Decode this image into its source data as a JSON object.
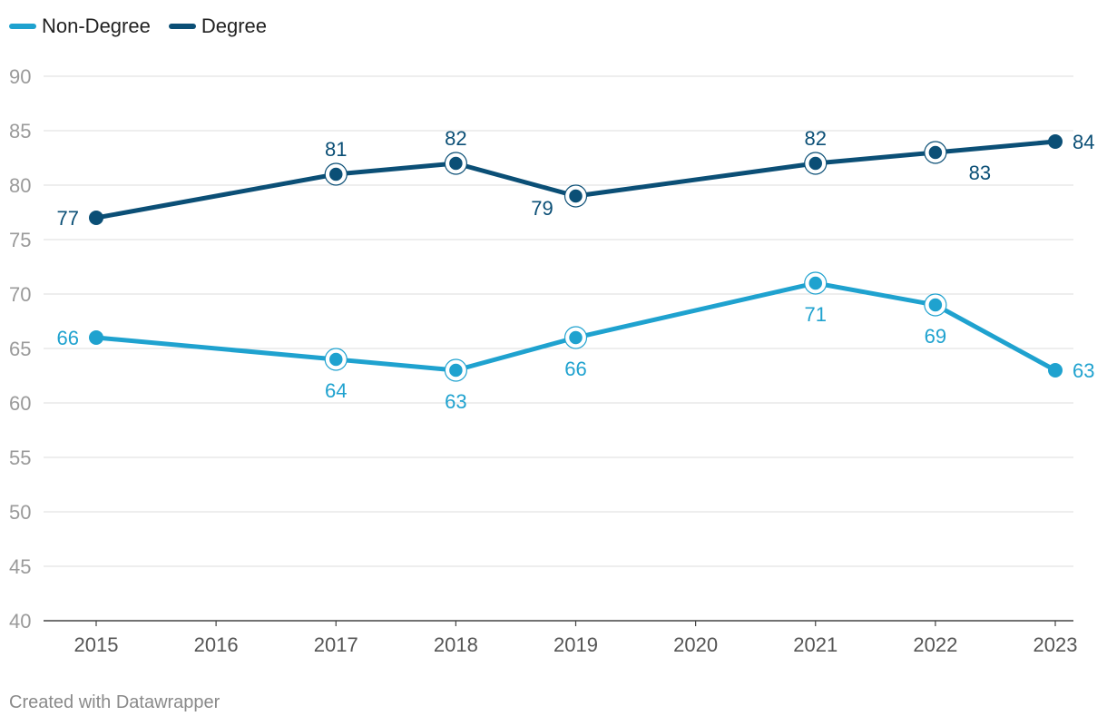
{
  "legend": [
    {
      "name": "Non-Degree",
      "color": "#1fa2cf"
    },
    {
      "name": "Degree",
      "color": "#0b4f76"
    }
  ],
  "footer": "Created with Datawrapper",
  "chart_data": {
    "type": "line",
    "title": "",
    "xlabel": "",
    "ylabel": "",
    "ylim": [
      40,
      90
    ],
    "yticks": [
      40,
      45,
      50,
      55,
      60,
      65,
      70,
      75,
      80,
      85,
      90
    ],
    "x": [
      2015,
      2016,
      2017,
      2018,
      2019,
      2020,
      2021,
      2022,
      2023
    ],
    "grid": true,
    "series": [
      {
        "name": "Degree",
        "color": "#0b4f76",
        "points": [
          {
            "x": 2015,
            "y": 77,
            "label_pos": "left"
          },
          {
            "x": 2017,
            "y": 81,
            "label_pos": "above"
          },
          {
            "x": 2018,
            "y": 82,
            "label_pos": "above"
          },
          {
            "x": 2019,
            "y": 79,
            "label_pos": "below-left"
          },
          {
            "x": 2021,
            "y": 82,
            "label_pos": "above"
          },
          {
            "x": 2022,
            "y": 83,
            "label_pos": "below-right"
          },
          {
            "x": 2023,
            "y": 84,
            "label_pos": "right"
          }
        ]
      },
      {
        "name": "Non-Degree",
        "color": "#1fa2cf",
        "points": [
          {
            "x": 2015,
            "y": 66,
            "label_pos": "left"
          },
          {
            "x": 2017,
            "y": 64,
            "label_pos": "below"
          },
          {
            "x": 2018,
            "y": 63,
            "label_pos": "below"
          },
          {
            "x": 2019,
            "y": 66,
            "label_pos": "below"
          },
          {
            "x": 2021,
            "y": 71,
            "label_pos": "below"
          },
          {
            "x": 2022,
            "y": 69,
            "label_pos": "below"
          },
          {
            "x": 2023,
            "y": 63,
            "label_pos": "right"
          }
        ]
      }
    ]
  }
}
